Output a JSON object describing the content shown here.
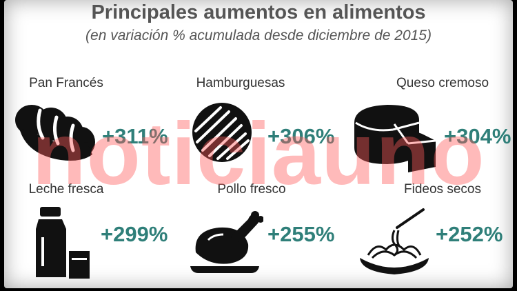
{
  "title": "Principales aumentos en alimentos",
  "subtitle": "(en variación % acumulada desde diciembre de 2015)",
  "watermark": "noticiauno",
  "colors": {
    "value": "#2f7f79",
    "title": "#555555",
    "icon": "#111111",
    "watermark": "#ff5a5a"
  },
  "chart_data": {
    "type": "table",
    "title": "Principales aumentos en alimentos",
    "subtitle": "(en variación % acumulada desde diciembre de 2015)",
    "categories": [
      "Pan Francés",
      "Hamburguesas",
      "Queso cremoso",
      "Leche fresca",
      "Pollo fresco",
      "Fideos secos"
    ],
    "values": [
      311,
      306,
      304,
      299,
      255,
      252
    ],
    "labels": [
      "+311%",
      "+306%",
      "+304%",
      "+299%",
      "+255%",
      "+252%"
    ],
    "unit": "%",
    "icons": [
      "bread-icon",
      "burger-patty-icon",
      "cheese-icon",
      "milk-bottle-icon",
      "roast-chicken-icon",
      "spaghetti-icon"
    ]
  }
}
